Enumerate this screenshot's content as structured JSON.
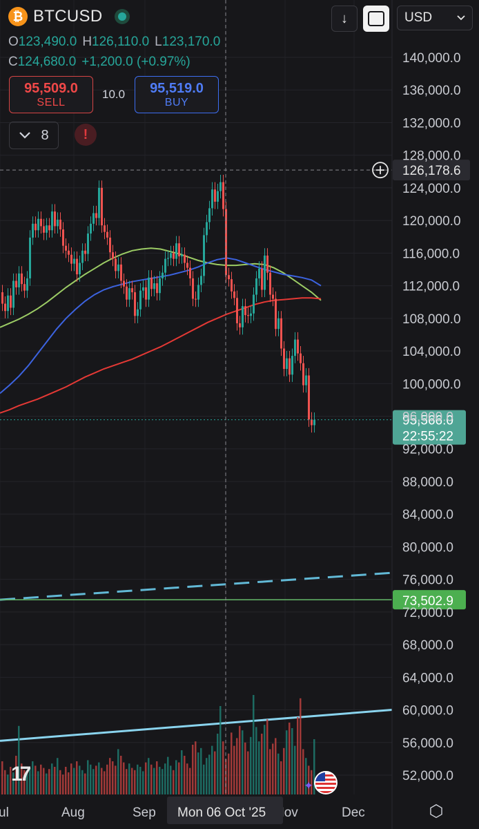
{
  "header": {
    "symbol": "BTCUSD",
    "currency": "USD",
    "ohlc": {
      "open_label": "O",
      "open": "123,490.0",
      "high_label": "H",
      "high": "126,110.0",
      "low_label": "L",
      "low": "123,170.0",
      "close_label": "C",
      "close": "124,680.0",
      "change": "+1,200.0 (+0.97%)"
    },
    "sell": {
      "price": "95,509.0",
      "label": "SELL"
    },
    "buy": {
      "price": "95,519.0",
      "label": "BUY"
    },
    "spread": "10.0",
    "indicator_count": "8",
    "icons": {
      "symbol": "bitcoin-icon",
      "download": "arrow-down-icon",
      "rotate": "rotate-screen-icon",
      "indicators": "chevron-down-icon",
      "alert": "exclamation-icon",
      "logo": "tradingview-logo-icon",
      "event": "us-flag-icon",
      "settings": "settings-icon"
    }
  },
  "chart_data": {
    "type": "candlestick",
    "symbol": "BTCUSD",
    "y_axis": {
      "ticks": [
        "140,000.0",
        "136,000.0",
        "132,000.0",
        "128,000.0",
        "124,000.0",
        "120,000.0",
        "116,000.0",
        "112,000.0",
        "108,000.0",
        "104,000.0",
        "100,000.0",
        "96,000.0",
        "92,000.0",
        "88,000.0",
        "84,000.0",
        "80,000.0",
        "76,000.0",
        "72,000.0",
        "68,000.0",
        "64,000.0",
        "60,000.0",
        "56,000.0",
        "52,000.0"
      ],
      "ylim": [
        49000,
        143000
      ]
    },
    "x_axis": {
      "ticks": [
        "ul",
        "Aug",
        "Sep",
        "Oct",
        "Nov",
        "Dec"
      ],
      "crosshair_label": "Mon 06 Oct '25"
    },
    "crosshair": {
      "price_label": "126,178.6",
      "price": 126178.6
    },
    "last_price": {
      "label": "95,566.0",
      "countdown": "22:55:22",
      "value": 95566
    },
    "horizontal_line": {
      "label": "73,502.9",
      "value": 73502.9,
      "color": "#66bb6a"
    },
    "trendlines": [
      {
        "style": "dashed",
        "color": "#62b9d6",
        "start": 73500,
        "end": 76800
      },
      {
        "style": "solid",
        "color": "#8ad4ee",
        "start": 56200,
        "end": 60000
      }
    ],
    "candles_close": [
      109800,
      108900,
      110800,
      109300,
      112600,
      111800,
      113500,
      112200,
      111400,
      112900,
      117900,
      119600,
      118800,
      120200,
      119300,
      118500,
      119400,
      118800,
      121100,
      119300,
      120100,
      118900,
      116900,
      116300,
      115800,
      114700,
      115300,
      113400,
      114800,
      116300,
      115900,
      118400,
      119600,
      120900,
      120300,
      124000,
      119400,
      118600,
      117900,
      116100,
      115300,
      113800,
      114600,
      112600,
      111900,
      110300,
      111700,
      111200,
      108300,
      109100,
      111400,
      111800,
      110300,
      113000,
      111600,
      112300,
      111100,
      112900,
      113600,
      115300,
      115400,
      116000,
      115300,
      117200,
      115600,
      115800,
      114800,
      114200,
      112900,
      110400,
      110300,
      112100,
      113200,
      118200,
      119800,
      121500,
      123800,
      122300,
      123600,
      124700,
      121400,
      113300,
      112800,
      111300,
      110500,
      107400,
      106900,
      109500,
      108400,
      108300,
      108600,
      110900,
      112900,
      114100,
      111500,
      115700,
      113600,
      110900,
      110400,
      106700,
      108000,
      104300,
      101800,
      103100,
      101100,
      103400,
      105400,
      103700,
      102500,
      99800,
      101000,
      95600,
      94900,
      95566
    ],
    "candles_open": [
      111200,
      109800,
      108900,
      110800,
      109300,
      112600,
      111800,
      113500,
      112200,
      111400,
      112900,
      117900,
      119600,
      118800,
      120200,
      119300,
      118500,
      119400,
      118800,
      121100,
      119300,
      120100,
      118900,
      116900,
      116300,
      115800,
      114700,
      115300,
      113400,
      114800,
      116300,
      115900,
      118400,
      119600,
      120900,
      120300,
      124000,
      119400,
      118600,
      117900,
      116100,
      115300,
      113800,
      114600,
      112600,
      111900,
      110300,
      111700,
      111200,
      108300,
      109100,
      111400,
      111800,
      110300,
      113000,
      111600,
      112300,
      111100,
      112900,
      113600,
      115300,
      115400,
      116000,
      115300,
      117200,
      115600,
      115800,
      114800,
      114200,
      112900,
      110400,
      110300,
      112100,
      113200,
      118200,
      119800,
      121500,
      123800,
      122300,
      123600,
      124700,
      121400,
      113300,
      112800,
      111300,
      110500,
      107400,
      106900,
      109500,
      108400,
      108300,
      108600,
      110900,
      112900,
      114100,
      111500,
      115700,
      113600,
      110900,
      110400,
      106700,
      108000,
      104300,
      101800,
      103100,
      101100,
      103400,
      105400,
      103700,
      102500,
      99800,
      101000,
      95600,
      94900
    ],
    "ma_series": [
      {
        "color": "#9ccc65",
        "values": [
          106900,
          107400,
          107900,
          108500,
          109200,
          110000,
          110900,
          111800,
          112600,
          113400,
          114100,
          114800,
          115400,
          115900,
          116300,
          116500,
          116600,
          116500,
          116200,
          115900,
          115500,
          115100,
          114800,
          114600,
          114500,
          114500,
          114600,
          114700,
          114600,
          114200,
          113600,
          112800,
          112000,
          111200,
          110200
        ]
      },
      {
        "color": "#3c63e0",
        "values": [
          98800,
          99800,
          100900,
          102200,
          103700,
          105200,
          106700,
          108000,
          109100,
          110100,
          110900,
          111500,
          111900,
          112200,
          112500,
          112700,
          112900,
          113100,
          113300,
          113600,
          113900,
          114300,
          114800,
          115200,
          115400,
          115200,
          114800,
          114400,
          114000,
          113700,
          113400,
          113200,
          113000,
          112700,
          112000
        ]
      },
      {
        "color": "#e53935",
        "values": [
          96400,
          96800,
          97300,
          97700,
          98100,
          98600,
          99100,
          99600,
          100200,
          100800,
          101300,
          101800,
          102200,
          102600,
          103000,
          103500,
          104000,
          104500,
          105100,
          105700,
          106300,
          106900,
          107500,
          108000,
          108500,
          108900,
          109300,
          109700,
          110000,
          110200,
          110300,
          110400,
          110500,
          110500,
          110400
        ]
      }
    ],
    "volume": [
      30,
      22,
      18,
      25,
      20,
      35,
      62,
      28,
      22,
      20,
      24,
      30,
      26,
      21,
      27,
      24,
      19,
      23,
      28,
      25,
      33,
      22,
      18,
      25,
      20,
      28,
      24,
      30,
      26,
      22,
      19,
      31,
      27,
      23,
      26,
      29,
      24,
      21,
      27,
      33,
      30,
      26,
      41,
      35,
      29,
      23,
      28,
      24,
      22,
      27,
      25,
      21,
      29,
      33,
      27,
      24,
      30,
      25,
      23,
      28,
      34,
      26,
      22,
      31,
      29,
      40,
      35,
      28,
      24,
      45,
      48,
      38,
      42,
      27,
      33,
      36,
      44,
      39,
      55,
      80,
      48,
      32,
      37,
      56,
      44,
      51,
      62,
      58,
      47,
      39,
      52,
      90,
      61,
      48,
      55,
      63,
      68,
      41,
      46,
      51,
      37,
      30,
      42,
      58,
      65,
      60,
      44,
      70,
      87,
      41,
      33,
      26,
      22,
      50
    ]
  }
}
